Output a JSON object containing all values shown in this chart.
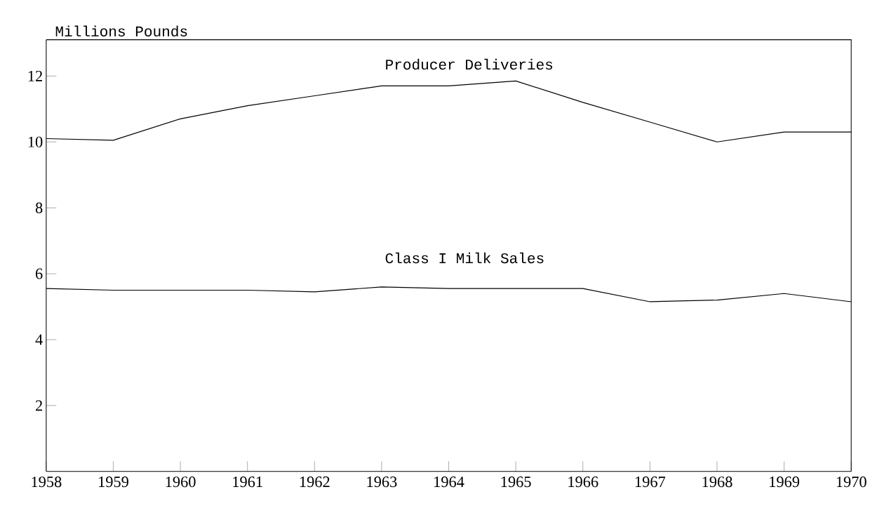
{
  "chart_data": {
    "type": "line",
    "ylabel": "Millions Pounds",
    "x": [
      1958,
      1959,
      1960,
      1961,
      1962,
      1963,
      1964,
      1965,
      1966,
      1967,
      1968,
      1969,
      1970
    ],
    "series": [
      {
        "name": "Producer Deliveries",
        "color": "#000000",
        "values": [
          10.1,
          10.05,
          10.7,
          11.1,
          11.4,
          11.7,
          11.7,
          11.85,
          11.2,
          10.6,
          10.0,
          10.3,
          10.3
        ]
      },
      {
        "name": "Class I Milk Sales",
        "color": "#000000",
        "values": [
          5.55,
          5.5,
          5.5,
          5.5,
          5.45,
          5.6,
          5.55,
          5.55,
          5.55,
          5.15,
          5.2,
          5.4,
          5.15
        ]
      }
    ],
    "xlim": [
      1958,
      1970
    ],
    "ylim": [
      0,
      13.1
    ],
    "xticks": [
      1958,
      1959,
      1960,
      1961,
      1962,
      1963,
      1964,
      1965,
      1966,
      1967,
      1968,
      1969,
      1970
    ],
    "yticks": [
      2,
      4,
      6,
      8,
      10,
      12
    ],
    "grid": false,
    "legend": false,
    "marker": "none",
    "line_style": "solid"
  }
}
